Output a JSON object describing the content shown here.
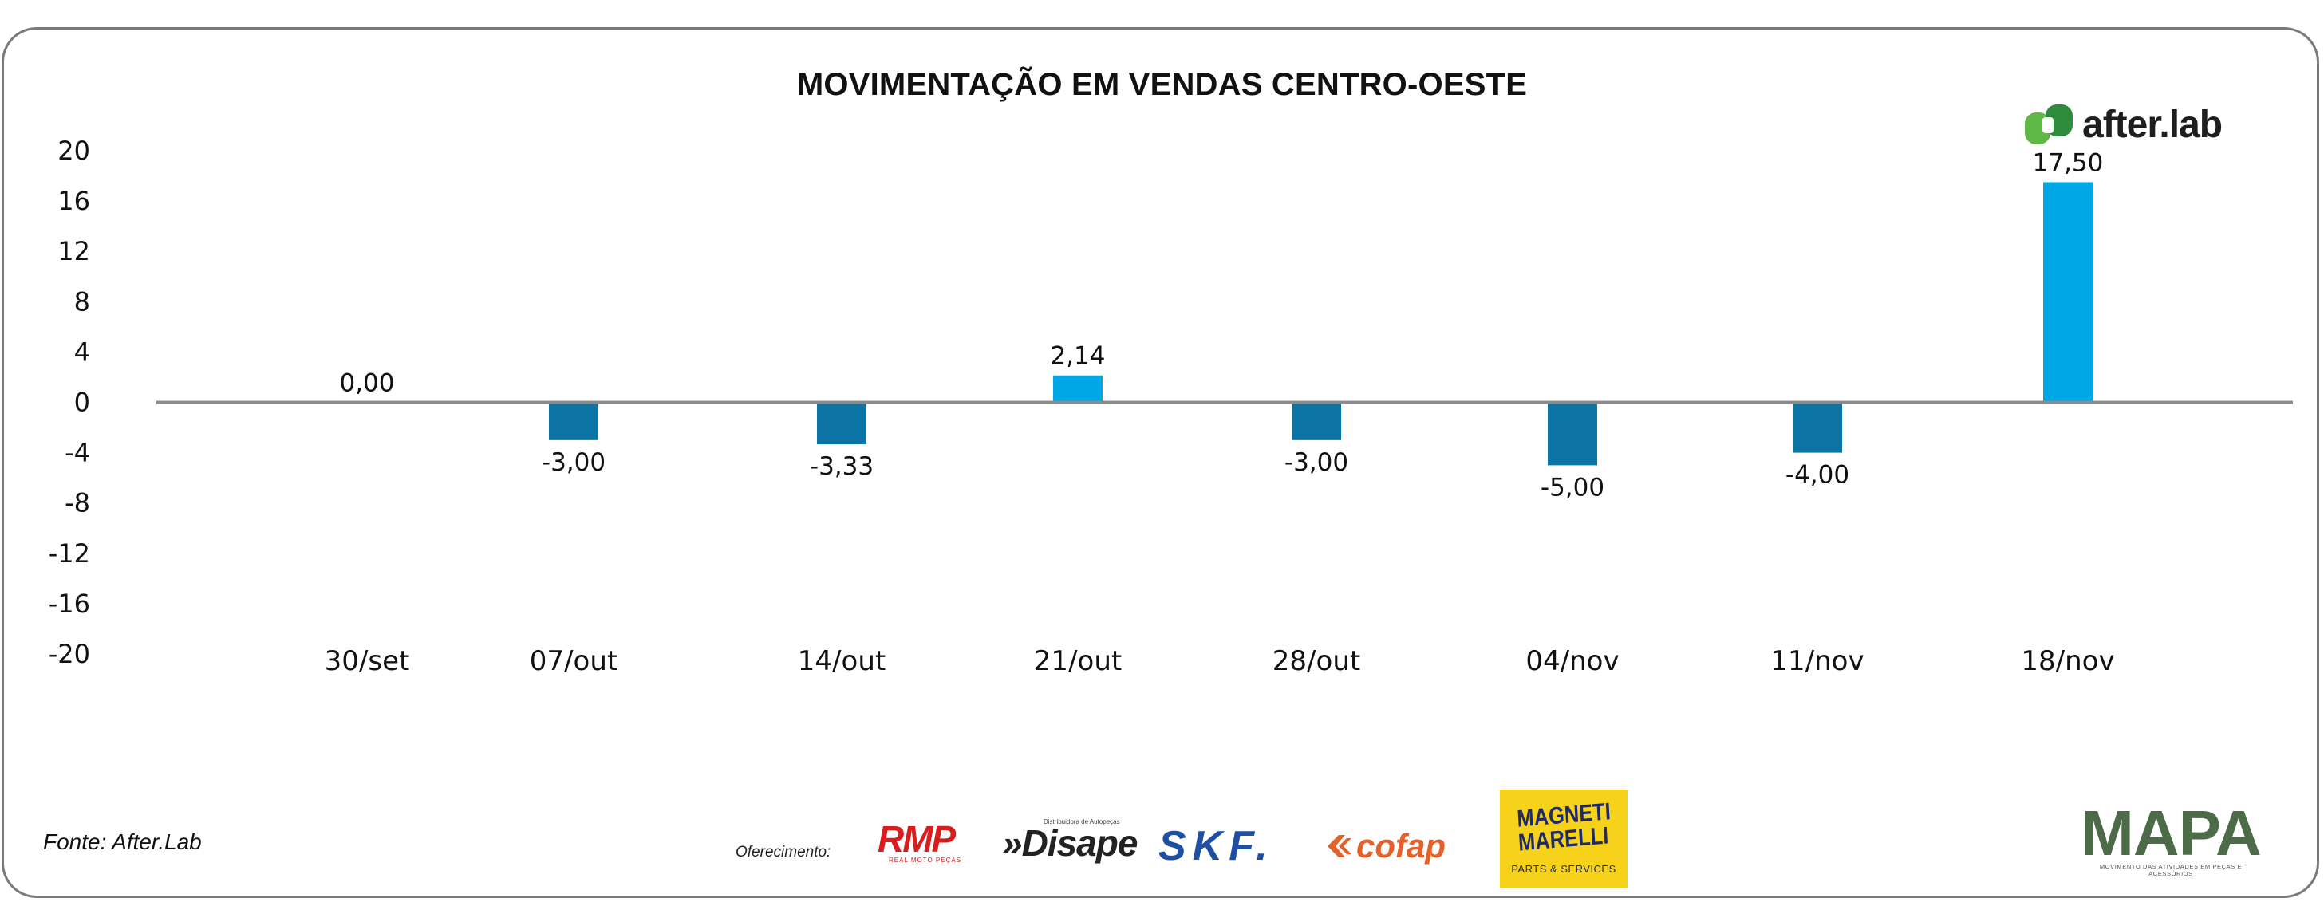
{
  "chart_data": {
    "type": "bar",
    "title": "MOVIMENTAÇÃO EM VENDAS CENTRO-OESTE",
    "categories": [
      "30/set",
      "07/out",
      "14/out",
      "21/out",
      "28/out",
      "04/nov",
      "11/nov",
      "18/nov"
    ],
    "values": [
      0.0,
      -3.0,
      -3.33,
      2.14,
      -3.0,
      -5.0,
      -4.0,
      17.5
    ],
    "data_labels": [
      "0,00",
      "-3,00",
      "-3,33",
      "2,14",
      "-3,00",
      "-5,00",
      "-4,00",
      "17,50"
    ],
    "ylim": [
      -20,
      20
    ],
    "yticks": [
      20,
      16,
      12,
      8,
      4,
      0,
      -4,
      -8,
      -12,
      -16,
      -20
    ],
    "xlabel": "",
    "ylabel": "",
    "grid": false,
    "colors": {
      "positive": "#00A7E7",
      "negative": "#0B74A4",
      "zero_line": "#8C8C8C"
    }
  },
  "branding": {
    "afterlab_logo": "after.lab",
    "afterlab_colors": [
      "#5FB846",
      "#2E8B3C"
    ]
  },
  "footer": {
    "source": "Fonte: After.Lab",
    "sponsor_label": "Oferecimento:",
    "sponsors": {
      "rmp": "RMP",
      "rmp_tagline": "REAL MOTO PEÇAS",
      "disape": "»Disape",
      "disape_tagline": "Distribuidora de Autopeças",
      "skf": "SKF.",
      "cofap": "cofap",
      "magneti_line1": "MAGNETI",
      "magneti_line2": "MARELLI",
      "magneti_line3": "PARTS & SERVICES",
      "mapa": "MAPA",
      "mapa_tagline": "MOVIMENTO DAS ATIVIDADES EM PEÇAS E ACESSÓRIOS"
    }
  }
}
